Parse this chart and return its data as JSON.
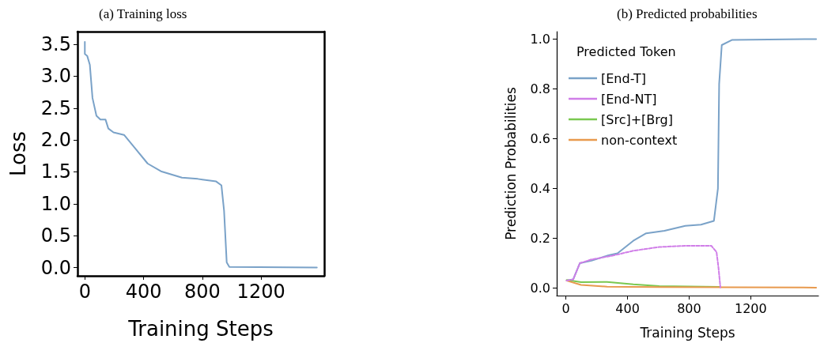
{
  "chart_data": [
    {
      "type": "line",
      "title": "(a) Training loss",
      "xlabel": "Training Steps",
      "ylabel": "Loss",
      "xlim": [
        -50,
        1630
      ],
      "xticks": [
        0,
        400,
        800,
        1200
      ],
      "ylim": [
        -0.13,
        3.7
      ],
      "yticks": [
        {
          "value": 0,
          "label": "0.0"
        },
        0.5,
        {
          "value": 1,
          "label": "1.0"
        },
        1.5,
        {
          "value": 2,
          "label": "2.0"
        },
        2.5,
        {
          "value": 3,
          "label": "3.0"
        },
        3.5
      ],
      "series": [
        {
          "color": "#7aa2c8",
          "x": [
            0,
            0,
            16,
            34,
            52,
            79,
            106,
            141,
            160,
            195,
            267,
            339,
            428,
            518,
            661,
            769,
            894,
            930,
            948,
            966,
            984,
            1580
          ],
          "values": [
            3.54,
            3.35,
            3.32,
            3.18,
            2.66,
            2.38,
            2.32,
            2.32,
            2.18,
            2.12,
            2.08,
            1.88,
            1.63,
            1.51,
            1.41,
            1.39,
            1.35,
            1.29,
            0.89,
            0.08,
            0.01,
            0.0
          ]
        }
      ]
    },
    {
      "type": "line",
      "title": "(b) Predicted probabilities",
      "xlabel": "Training Steps",
      "ylabel": "Prediction Probabilities",
      "legend_title": "Predicted Token",
      "legend": "top left",
      "xlim": [
        -60,
        1640
      ],
      "xticks": [
        0,
        400,
        800,
        1200
      ],
      "ylim": [
        -0.03,
        1.03
      ],
      "yticks": [
        {
          "value": 0,
          "label": "0.0"
        },
        0.2,
        0.4,
        0.6,
        0.8,
        {
          "value": 1,
          "label": "1.0"
        }
      ],
      "series": [
        {
          "name": "[End-T]",
          "color": "#7aa2c8",
          "x": [
            5,
            47,
            90,
            166,
            267,
            335,
            437,
            521,
            640,
            775,
            877,
            961,
            987,
            995,
            1012,
            1080,
            1625
          ],
          "values": [
            0.03,
            0.035,
            0.1,
            0.11,
            0.13,
            0.14,
            0.19,
            0.22,
            0.23,
            0.25,
            0.255,
            0.27,
            0.4,
            0.82,
            0.976,
            0.997,
            1.0
          ]
        },
        {
          "name": "[End-NT]",
          "color": "#d07ee8",
          "line_style": "dashed",
          "x": [
            5,
            47,
            90,
            166,
            301,
            437,
            606,
            775,
            944,
            978,
            991,
            1003
          ],
          "values": [
            0.03,
            0.035,
            0.1,
            0.115,
            0.13,
            0.15,
            0.165,
            0.17,
            0.17,
            0.145,
            0.08,
            0.003
          ]
        },
        {
          "name": "[Src]+[Brg]",
          "color": "#7ac850",
          "x": [
            5,
            98,
            267,
            437,
            606,
            995
          ],
          "values": [
            0.033,
            0.024,
            0.025,
            0.015,
            0.008,
            0.005
          ]
        },
        {
          "name": "non-context",
          "color": "#e89a4e",
          "x": [
            5,
            98,
            267,
            606,
            1625
          ],
          "values": [
            0.03,
            0.013,
            0.006,
            0.004,
            0.002
          ]
        }
      ]
    }
  ]
}
